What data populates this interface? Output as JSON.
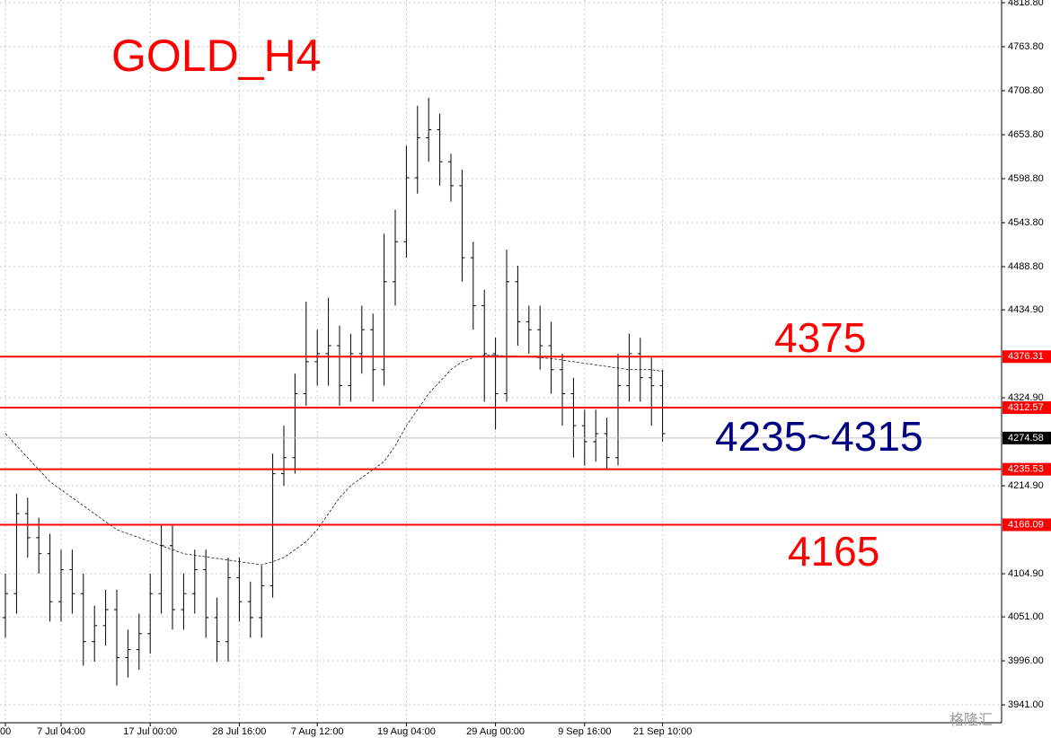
{
  "chart_data": {
    "type": "ohlc",
    "title": "GOLD_H4",
    "title_color": "#ff0000",
    "categories": [
      "00",
      null,
      null,
      null,
      null,
      "7 Jul 04:00",
      null,
      null,
      null,
      null,
      null,
      null,
      null,
      "17 Jul 00:00",
      null,
      null,
      null,
      null,
      null,
      null,
      null,
      "28 Jul 16:00",
      null,
      null,
      null,
      null,
      null,
      null,
      "7 Aug 12:00",
      null,
      null,
      null,
      null,
      null,
      null,
      null,
      "19 Aug 04:00",
      null,
      null,
      null,
      null,
      null,
      null,
      null,
      "29 Aug 00:00",
      null,
      null,
      null,
      null,
      null,
      null,
      null,
      "9 Sep 16:00",
      null,
      null,
      null,
      null,
      null,
      null,
      "21 Sep 10:00"
    ],
    "open": [
      4050,
      4080,
      4180,
      4150,
      4130,
      4070,
      4110,
      4080,
      4020,
      4040,
      4060,
      4000,
      4010,
      4030,
      4080,
      4140,
      4060,
      4080,
      4110,
      4050,
      4020,
      4100,
      4070,
      4050,
      4090,
      4230,
      4250,
      4330,
      4370,
      4380,
      4390,
      4340,
      4380,
      4410,
      4360,
      4470,
      4520,
      4600,
      4650,
      4660,
      4620,
      4590,
      4500,
      4440,
      4380,
      4330,
      4470,
      4420,
      4410,
      4390,
      4360,
      4330,
      4290,
      4270,
      4280,
      4250,
      4340,
      4380,
      4350,
      4340
    ],
    "high": [
      4105,
      4205,
      4200,
      4175,
      4155,
      4135,
      4135,
      4105,
      4065,
      4085,
      4085,
      4035,
      4055,
      4105,
      4165,
      4165,
      4105,
      4135,
      4135,
      4075,
      4125,
      4125,
      4095,
      4115,
      4255,
      4290,
      4355,
      4445,
      4410,
      4450,
      4415,
      4405,
      4440,
      4430,
      4530,
      4560,
      4640,
      4690,
      4700,
      4680,
      4630,
      4610,
      4520,
      4460,
      4400,
      4510,
      4490,
      4440,
      4440,
      4420,
      4380,
      4350,
      4310,
      4310,
      4300,
      4380,
      4405,
      4400,
      4375,
      4360
    ],
    "low": [
      4025,
      4055,
      4125,
      4105,
      4045,
      4045,
      4055,
      3990,
      3995,
      4015,
      3965,
      3975,
      3985,
      4005,
      4055,
      4035,
      4035,
      4055,
      4025,
      3995,
      3995,
      4045,
      4025,
      4025,
      4075,
      4215,
      4230,
      4315,
      4340,
      4340,
      4315,
      4320,
      4355,
      4320,
      4340,
      4440,
      4500,
      4580,
      4620,
      4590,
      4570,
      4470,
      4410,
      4320,
      4285,
      4320,
      4390,
      4380,
      4360,
      4330,
      4290,
      4250,
      4240,
      4245,
      4235,
      4240,
      4320,
      4320,
      4290,
      4270
    ],
    "close": [
      4080,
      4180,
      4150,
      4130,
      4070,
      4110,
      4080,
      4020,
      4040,
      4060,
      4000,
      4010,
      4030,
      4080,
      4140,
      4060,
      4080,
      4110,
      4050,
      4020,
      4100,
      4070,
      4050,
      4090,
      4230,
      4250,
      4330,
      4370,
      4380,
      4390,
      4340,
      4380,
      4410,
      4360,
      4470,
      4520,
      4600,
      4650,
      4660,
      4620,
      4590,
      4500,
      4440,
      4380,
      4330,
      4470,
      4420,
      4410,
      4390,
      4360,
      4330,
      4290,
      4270,
      4280,
      4250,
      4340,
      4380,
      4350,
      4340,
      4280
    ],
    "color": "#000000",
    "ma": [
      4280,
      4265,
      4250,
      4235,
      4220,
      4210,
      4200,
      4190,
      4180,
      4170,
      4160,
      4155,
      4150,
      4145,
      4140,
      4135,
      4130,
      4128,
      4126,
      4124,
      4122,
      4120,
      4118,
      4116,
      4120,
      4125,
      4135,
      4145,
      4160,
      4180,
      4200,
      4215,
      4225,
      4235,
      4245,
      4265,
      4290,
      4310,
      4330,
      4345,
      4360,
      4370,
      4375,
      4378,
      4378,
      4377,
      4377,
      4376,
      4375,
      4374,
      4372,
      4370,
      4368,
      4366,
      4364,
      4362,
      4360,
      4360,
      4360,
      4358
    ],
    "levels": [
      4376.31,
      4312.57,
      4235.53,
      4166.09
    ],
    "level_color": "#ff0000",
    "current_price": 4274.58,
    "ylim": [
      3918.6,
      4822.2
    ],
    "yticks": [
      {
        "value": 4818.8,
        "label": "4818.80"
      },
      {
        "value": 4763.8,
        "label": "4763.80"
      },
      {
        "value": 4708.8,
        "label": "4708.80"
      },
      {
        "value": 4653.8,
        "label": "4653.80"
      },
      {
        "value": 4598.8,
        "label": "4598.80"
      },
      {
        "value": 4543.8,
        "label": "4543.80"
      },
      {
        "value": 4488.8,
        "label": "4488.80"
      },
      {
        "value": 4434.9,
        "label": "4434.90"
      },
      {
        "value": 4324.9,
        "label": "4324.90"
      },
      {
        "value": 4214.9,
        "label": "4214.90"
      },
      {
        "value": 4104.9,
        "label": "4104.90"
      },
      {
        "value": 4051.0,
        "label": "4051.00"
      },
      {
        "value": 3996.0,
        "label": "3996.00"
      },
      {
        "value": 3941.0,
        "label": "3941.00"
      }
    ],
    "grid": true,
    "annotations": [
      {
        "text": "4375",
        "color": "#ff0000"
      },
      {
        "text": "4235~4315",
        "color": "#000080"
      },
      {
        "text": "4165",
        "color": "#ff0000"
      }
    ],
    "watermark": "格隆汇"
  }
}
